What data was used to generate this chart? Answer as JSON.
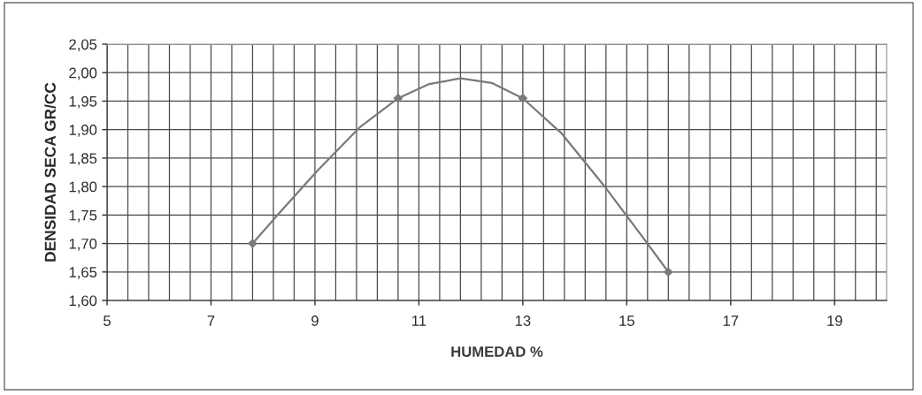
{
  "chart_data": {
    "type": "line",
    "xlabel": "HUMEDAD %",
    "ylabel": "DENSIDAD SECA GR/CC",
    "x": [
      7.8,
      8.3,
      9.05,
      9.85,
      10.6,
      11.2,
      11.8,
      12.4,
      13.0,
      13.75,
      14.55,
      15.3,
      15.8
    ],
    "series": [
      {
        "color": "#7a7a7a",
        "marker": "none",
        "values": [
          1.7,
          1.752,
          1.828,
          1.903,
          1.955,
          1.98,
          1.99,
          1.982,
          1.955,
          1.893,
          1.803,
          1.712,
          1.65
        ]
      },
      {
        "type": "scatter",
        "color": "#7a7a7a",
        "x": [
          7.8,
          10.6,
          13.0,
          15.8
        ],
        "values": [
          1.7,
          1.955,
          1.955,
          1.65
        ]
      }
    ],
    "xlim": [
      5,
      20
    ],
    "xticks": [
      5,
      {
        "value": 5.4,
        "label": null
      },
      {
        "value": 5.8,
        "label": null
      },
      {
        "value": 6.2,
        "label": null
      },
      {
        "value": 6.6,
        "label": null
      },
      7,
      {
        "value": 7.4,
        "label": null
      },
      {
        "value": 7.8,
        "label": null
      },
      {
        "value": 8.2,
        "label": null
      },
      {
        "value": 8.6,
        "label": null
      },
      9,
      {
        "value": 9.4,
        "label": null
      },
      {
        "value": 9.8,
        "label": null
      },
      {
        "value": 10.2,
        "label": null
      },
      {
        "value": 10.6,
        "label": null
      },
      11,
      {
        "value": 11.4,
        "label": null
      },
      {
        "value": 11.8,
        "label": null
      },
      {
        "value": 12.2,
        "label": null
      },
      {
        "value": 12.6,
        "label": null
      },
      13,
      {
        "value": 13.4,
        "label": null
      },
      {
        "value": 13.8,
        "label": null
      },
      {
        "value": 14.2,
        "label": null
      },
      {
        "value": 14.6,
        "label": null
      },
      15,
      {
        "value": 15.4,
        "label": null
      },
      {
        "value": 15.8,
        "label": null
      },
      {
        "value": 16.2,
        "label": null
      },
      {
        "value": 16.6,
        "label": null
      },
      17,
      {
        "value": 17.4,
        "label": null
      },
      {
        "value": 17.8,
        "label": null
      },
      {
        "value": 18.2,
        "label": null
      },
      {
        "value": 18.6,
        "label": null
      },
      19,
      {
        "value": 19.4,
        "label": null
      },
      {
        "value": 19.8,
        "label": null
      }
    ],
    "ylim": [
      1.6,
      2.05
    ],
    "yticks": [
      {
        "value": 1.6,
        "label": "1,60"
      },
      {
        "value": 1.65,
        "label": "1,65"
      },
      {
        "value": 1.7,
        "label": "1,70"
      },
      {
        "value": 1.75,
        "label": "1,75"
      },
      {
        "value": 1.8,
        "label": "1,80"
      },
      {
        "value": 1.85,
        "label": "1,85"
      },
      {
        "value": 1.9,
        "label": "1,90"
      },
      {
        "value": 1.95,
        "label": "1,95"
      },
      {
        "value": 2.0,
        "label": "2,00"
      },
      {
        "value": 2.05,
        "label": "2,05"
      }
    ],
    "grid": true,
    "marker": "diamond",
    "line_style": "solid"
  }
}
